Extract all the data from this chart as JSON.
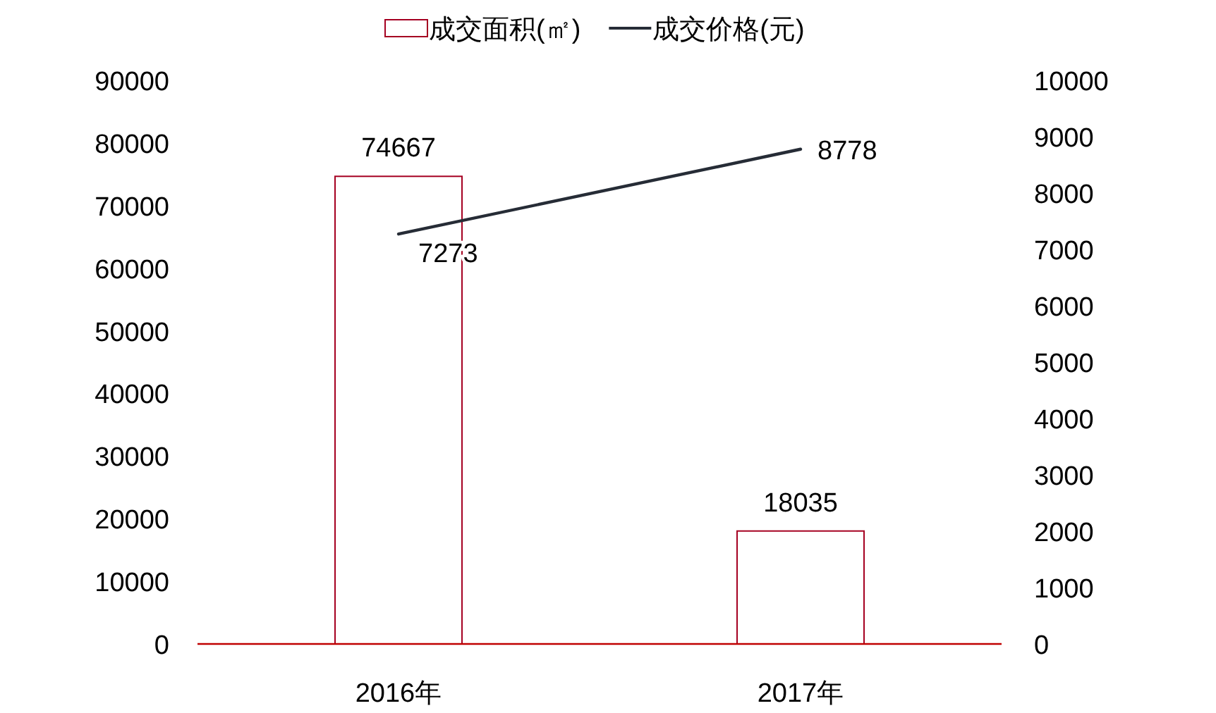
{
  "chart_data": {
    "type": "bar",
    "categories": [
      "2016年",
      "2017年"
    ],
    "series": [
      {
        "name": "成交面积(㎡)",
        "color": "#a50021",
        "values": [
          74667,
          18035
        ]
      },
      {
        "name": "成交价格(元)",
        "type": "line",
        "axis": "y2",
        "color": "#262c36",
        "values": [
          7273,
          8778
        ]
      }
    ],
    "ylim": [
      0,
      90000
    ],
    "yticks": [
      0,
      10000,
      20000,
      30000,
      40000,
      50000,
      60000,
      70000,
      80000,
      90000
    ],
    "y2lim": [
      0,
      10000
    ],
    "y2ticks": [
      0,
      1000,
      2000,
      3000,
      4000,
      5000,
      6000,
      7000,
      8000,
      9000,
      10000
    ],
    "legend": "top",
    "data_labels": true,
    "grid": false
  }
}
